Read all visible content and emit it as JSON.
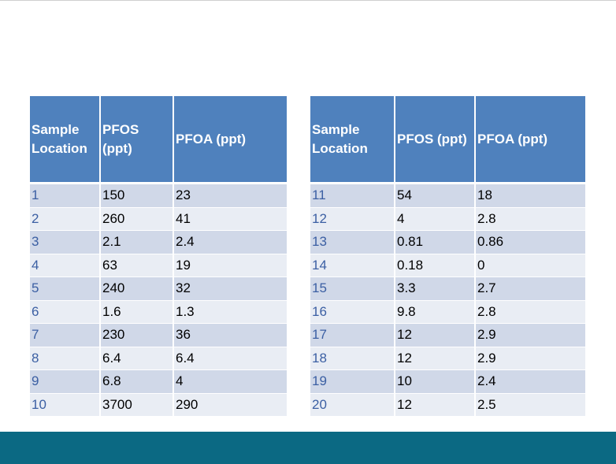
{
  "tables": [
    {
      "headers": [
        "Sample Location",
        "PFOS (ppt)",
        "PFOA (ppt)"
      ],
      "rows": [
        [
          "1",
          "150",
          "23"
        ],
        [
          "2",
          "260",
          "41"
        ],
        [
          "3",
          "2.1",
          "2.4"
        ],
        [
          "4",
          "63",
          "19"
        ],
        [
          "5",
          "240",
          "32"
        ],
        [
          "6",
          "1.6",
          "1.3"
        ],
        [
          "7",
          "230",
          "36"
        ],
        [
          "8",
          "6.4",
          "6.4"
        ],
        [
          "9",
          "6.8",
          "4"
        ],
        [
          "10",
          "3700",
          "290"
        ]
      ]
    },
    {
      "headers": [
        "Sample Location",
        "PFOS (ppt)",
        "PFOA (ppt)"
      ],
      "rows": [
        [
          "11",
          "54",
          "18"
        ],
        [
          "12",
          "4",
          "2.8"
        ],
        [
          "13",
          "0.81",
          "0.86"
        ],
        [
          "14",
          "0.18",
          "0"
        ],
        [
          "15",
          "3.3",
          "2.7"
        ],
        [
          "16",
          "9.8",
          "2.8"
        ],
        [
          "17",
          "12",
          "2.9"
        ],
        [
          "18",
          "12",
          "2.9"
        ],
        [
          "19",
          "10",
          "2.4"
        ],
        [
          "20",
          "12",
          "2.5"
        ]
      ]
    }
  ],
  "colors": {
    "header": "#4f81bd",
    "row_odd": "#d0d8e8",
    "row_even": "#e9edf4",
    "location_text": "#3b5fa3",
    "footer": "#0b6983"
  }
}
